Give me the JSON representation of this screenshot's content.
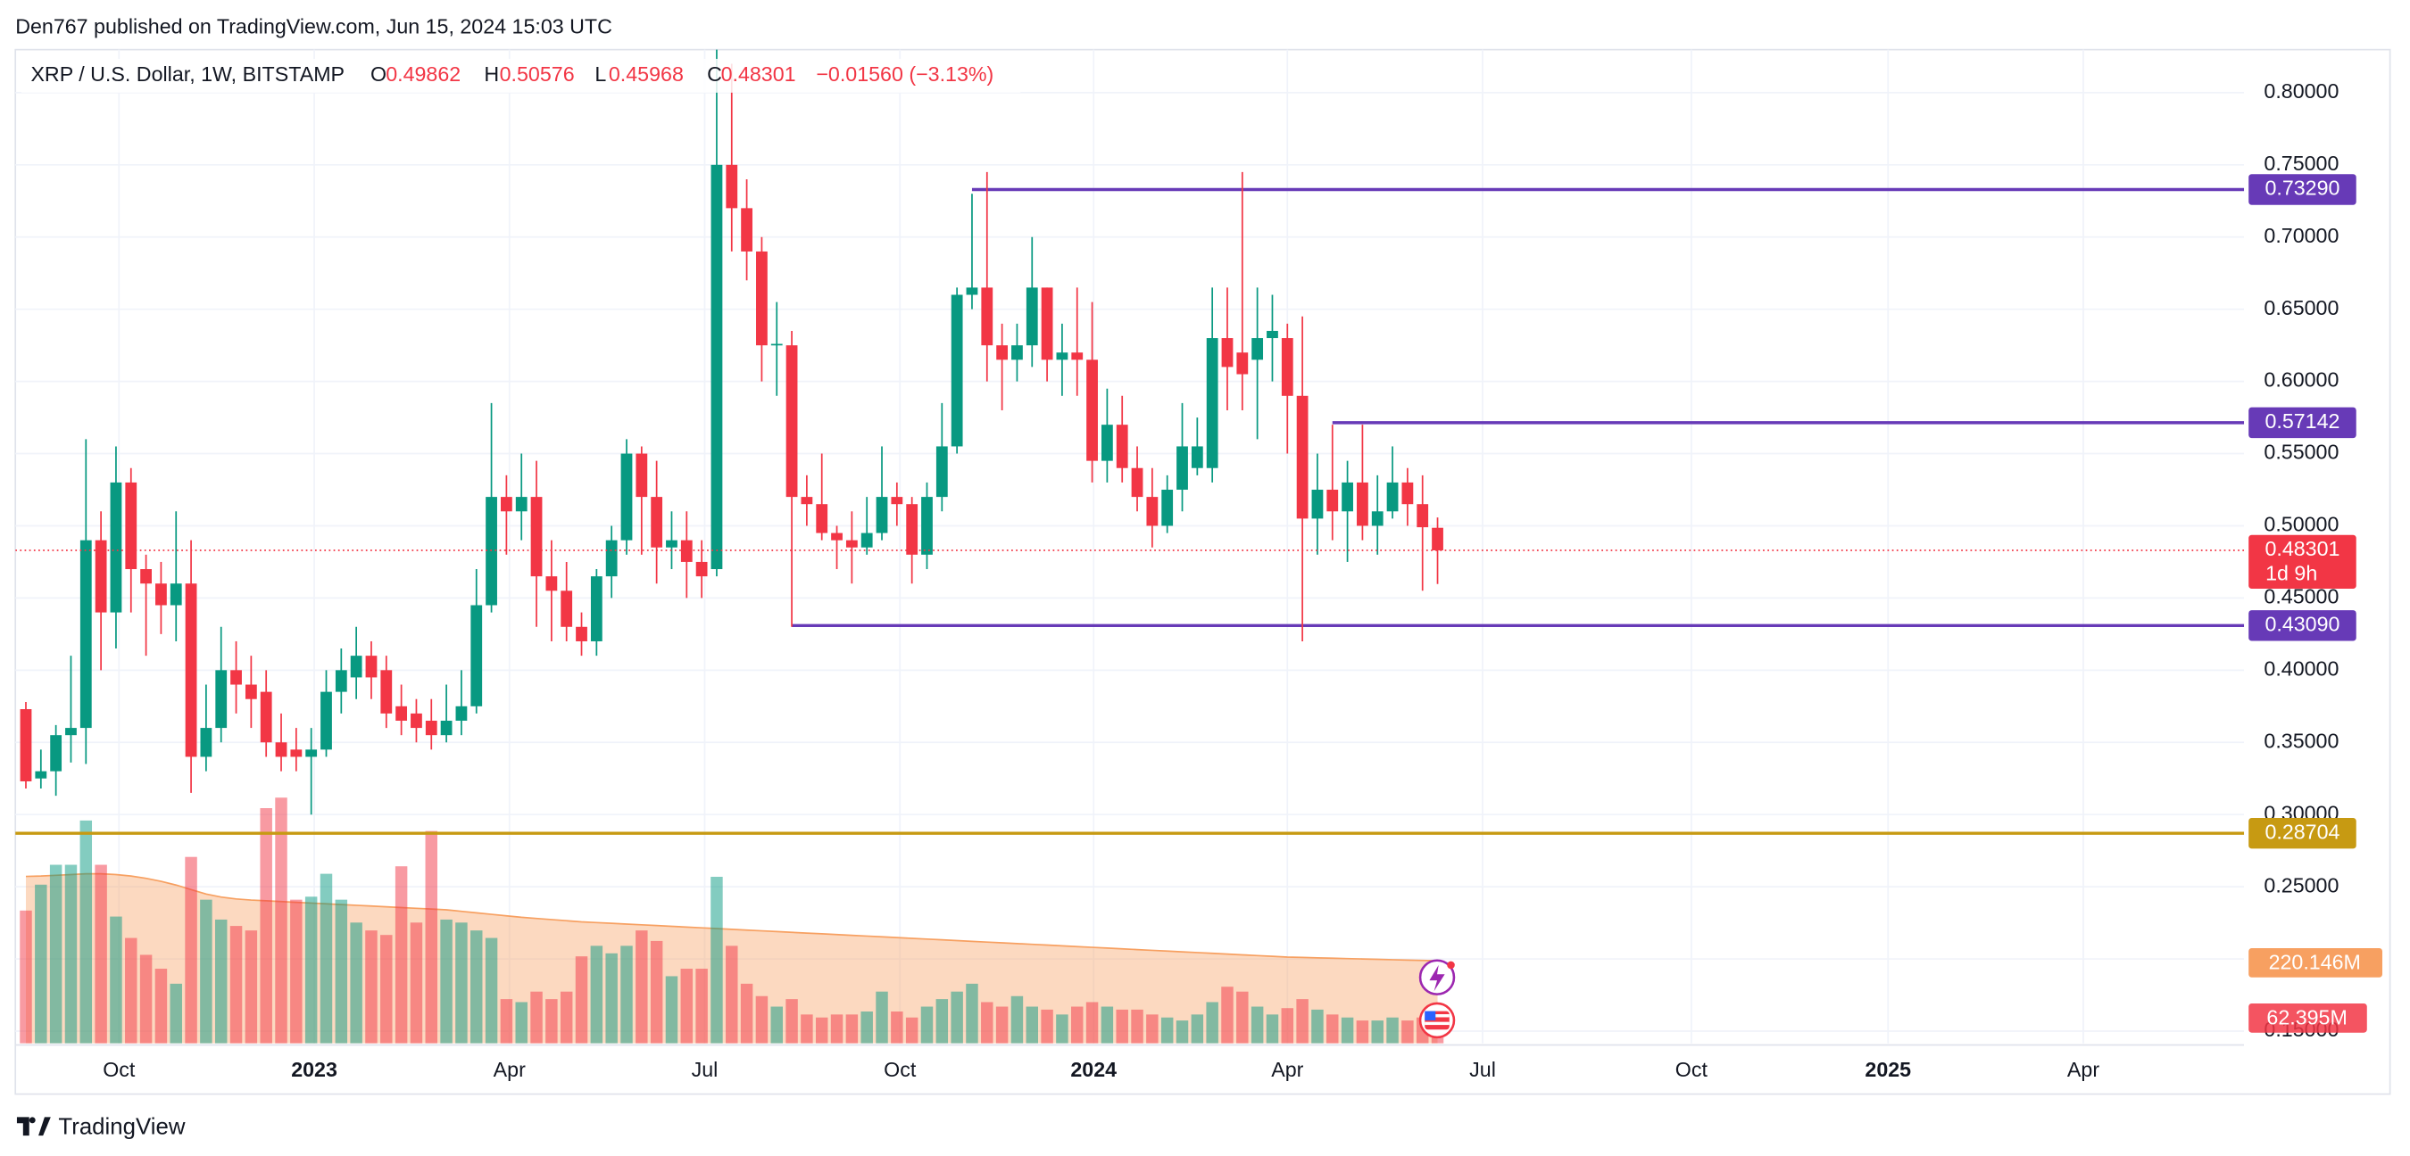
{
  "chart_data": {
    "type": "candlestick",
    "publisher": "Den767 published on TradingView.com, Jun 15, 2024 15:03 UTC",
    "brand": "TradingView",
    "legend": {
      "symbol": "XRP / U.S. Dollar, 1W, BITSTAMP",
      "open_key": "O",
      "high_key": "H",
      "low_key": "L",
      "close_key": "C",
      "change": "−0.01560 (−3.13%)"
    },
    "countdown": "1d 9h",
    "up_color": "#089981",
    "down_color": "#f23645",
    "grid": true,
    "xlim": [
      -0.7,
      147.7
    ],
    "xticks": [
      {
        "value": 6.2,
        "label": "Oct"
      },
      {
        "value": 19.2,
        "label": "2023"
      },
      {
        "value": 32.2,
        "label": "Apr"
      },
      {
        "value": 45.2,
        "label": "Jul"
      },
      {
        "value": 58.2,
        "label": "Oct"
      },
      {
        "value": 71.1,
        "label": "2024"
      },
      {
        "value": 84.0,
        "label": "Apr"
      },
      {
        "value": 97.0,
        "label": "Jul"
      },
      {
        "value": 110.9,
        "label": "Oct"
      },
      {
        "value": 124.0,
        "label": "2025"
      },
      {
        "value": 137.0,
        "label": "Apr"
      }
    ],
    "ylim": [
      0.1415,
      0.8298
    ],
    "yticks": [
      {
        "value": 0.8,
        "label": "0.80000"
      },
      {
        "value": 0.75,
        "label": "0.75000"
      },
      {
        "value": 0.7,
        "label": "0.70000"
      },
      {
        "value": 0.65,
        "label": "0.65000"
      },
      {
        "value": 0.6,
        "label": "0.60000"
      },
      {
        "value": 0.55,
        "label": "0.55000"
      },
      {
        "value": 0.5,
        "label": "0.50000"
      },
      {
        "value": 0.45,
        "label": "0.45000"
      },
      {
        "value": 0.4,
        "label": "0.40000"
      },
      {
        "value": 0.35,
        "label": "0.35000"
      },
      {
        "value": 0.3,
        "label": "0.30000"
      },
      {
        "value": 0.25,
        "label": "0.25000"
      },
      {
        "value": 0.2,
        "label": "0.20000"
      },
      {
        "value": 0.15,
        "label": "0.15000"
      }
    ],
    "open": [
      0.373,
      0.325,
      0.33,
      0.355,
      0.36,
      0.49,
      0.44,
      0.53,
      0.47,
      0.46,
      0.445,
      0.46,
      0.34,
      0.36,
      0.4,
      0.39,
      0.385,
      0.35,
      0.345,
      0.34,
      0.345,
      0.385,
      0.395,
      0.41,
      0.4,
      0.375,
      0.37,
      0.365,
      0.355,
      0.365,
      0.375,
      0.445,
      0.52,
      0.51,
      0.52,
      0.465,
      0.455,
      0.43,
      0.42,
      0.465,
      0.49,
      0.55,
      0.52,
      0.485,
      0.49,
      0.475,
      0.47,
      0.75,
      0.72,
      0.69,
      0.625,
      0.625,
      0.52,
      0.515,
      0.495,
      0.49,
      0.485,
      0.495,
      0.52,
      0.515,
      0.48,
      0.52,
      0.555,
      0.66,
      0.665,
      0.625,
      0.615,
      0.625,
      0.665,
      0.615,
      0.62,
      0.615,
      0.545,
      0.57,
      0.54,
      0.52,
      0.5,
      0.525,
      0.54,
      0.54,
      0.63,
      0.62,
      0.615,
      0.63,
      0.63,
      0.59,
      0.505,
      0.525,
      0.51,
      0.53,
      0.5,
      0.51,
      0.53,
      0.515,
      0.49862
    ],
    "high": [
      0.378,
      0.345,
      0.362,
      0.41,
      0.56,
      0.51,
      0.555,
      0.54,
      0.48,
      0.475,
      0.51,
      0.49,
      0.39,
      0.43,
      0.42,
      0.41,
      0.4,
      0.37,
      0.36,
      0.36,
      0.4,
      0.415,
      0.43,
      0.42,
      0.41,
      0.39,
      0.38,
      0.38,
      0.39,
      0.4,
      0.47,
      0.585,
      0.535,
      0.55,
      0.545,
      0.49,
      0.475,
      0.44,
      0.47,
      0.5,
      0.56,
      0.555,
      0.545,
      0.51,
      0.51,
      0.49,
      0.83,
      0.82,
      0.74,
      0.7,
      0.655,
      0.635,
      0.535,
      0.55,
      0.5,
      0.51,
      0.52,
      0.555,
      0.53,
      0.52,
      0.53,
      0.585,
      0.665,
      0.73,
      0.745,
      0.64,
      0.64,
      0.7,
      0.665,
      0.64,
      0.665,
      0.655,
      0.595,
      0.59,
      0.555,
      0.54,
      0.535,
      0.585,
      0.575,
      0.665,
      0.665,
      0.745,
      0.665,
      0.66,
      0.64,
      0.645,
      0.55,
      0.57,
      0.545,
      0.57,
      0.535,
      0.555,
      0.54,
      0.535,
      0.50576
    ],
    "low": [
      0.318,
      0.318,
      0.313,
      0.336,
      0.335,
      0.4,
      0.415,
      0.44,
      0.41,
      0.425,
      0.42,
      0.315,
      0.33,
      0.35,
      0.37,
      0.36,
      0.34,
      0.33,
      0.33,
      0.3,
      0.34,
      0.37,
      0.38,
      0.38,
      0.36,
      0.355,
      0.35,
      0.345,
      0.35,
      0.355,
      0.37,
      0.44,
      0.48,
      0.49,
      0.43,
      0.42,
      0.42,
      0.41,
      0.41,
      0.45,
      0.48,
      0.48,
      0.46,
      0.47,
      0.45,
      0.45,
      0.465,
      0.69,
      0.67,
      0.6,
      0.59,
      0.43,
      0.5,
      0.49,
      0.47,
      0.46,
      0.48,
      0.49,
      0.5,
      0.46,
      0.47,
      0.51,
      0.55,
      0.65,
      0.6,
      0.58,
      0.6,
      0.61,
      0.6,
      0.59,
      0.59,
      0.53,
      0.53,
      0.53,
      0.51,
      0.485,
      0.495,
      0.51,
      0.535,
      0.53,
      0.58,
      0.58,
      0.56,
      0.6,
      0.55,
      0.42,
      0.48,
      0.49,
      0.475,
      0.49,
      0.48,
      0.505,
      0.5,
      0.455,
      0.45968
    ],
    "close": [
      0.323,
      0.33,
      0.355,
      0.36,
      0.49,
      0.44,
      0.53,
      0.47,
      0.46,
      0.445,
      0.46,
      0.34,
      0.36,
      0.4,
      0.39,
      0.38,
      0.35,
      0.34,
      0.34,
      0.345,
      0.385,
      0.4,
      0.41,
      0.395,
      0.37,
      0.365,
      0.36,
      0.355,
      0.365,
      0.375,
      0.445,
      0.52,
      0.51,
      0.52,
      0.465,
      0.455,
      0.43,
      0.42,
      0.465,
      0.49,
      0.55,
      0.52,
      0.485,
      0.49,
      0.475,
      0.465,
      0.75,
      0.72,
      0.69,
      0.625,
      0.626,
      0.52,
      0.515,
      0.495,
      0.49,
      0.485,
      0.495,
      0.52,
      0.515,
      0.48,
      0.52,
      0.555,
      0.66,
      0.665,
      0.625,
      0.615,
      0.625,
      0.665,
      0.615,
      0.62,
      0.615,
      0.545,
      0.57,
      0.54,
      0.52,
      0.5,
      0.525,
      0.555,
      0.555,
      0.63,
      0.61,
      0.605,
      0.63,
      0.635,
      0.59,
      0.505,
      0.525,
      0.51,
      0.53,
      0.5,
      0.51,
      0.53,
      0.515,
      0.499,
      0.48301
    ],
    "levels": [
      {
        "value": 0.7329,
        "label": "0.73290",
        "color": "#673ab7",
        "x_start": 63
      },
      {
        "value": 0.57142,
        "label": "0.57142",
        "color": "#673ab7",
        "x_start": 87
      },
      {
        "value": 0.4309,
        "label": "0.43090",
        "color": "#673ab7",
        "x_start": 51
      },
      {
        "value": 0.28704,
        "label": "0.28704",
        "color": "#c79a12",
        "x_start": -0.7
      }
    ],
    "volume": {
      "ylim": [
        0,
        700
      ],
      "color": "#f23645",
      "last_label": "62.395M",
      "values": [
        354,
        423,
        476,
        476,
        594,
        476,
        338,
        281,
        236,
        199,
        159,
        497,
        383,
        330,
        313,
        301,
        627,
        655,
        383,
        391,
        452,
        383,
        322,
        301,
        289,
        472,
        322,
        566,
        330,
        322,
        301,
        281,
        118,
        110,
        138,
        118,
        138,
        232,
        260,
        240,
        260,
        301,
        273,
        179,
        199,
        199,
        444,
        260,
        159,
        126,
        98,
        118,
        77,
        69,
        77,
        77,
        85,
        138,
        85,
        69,
        98,
        118,
        138,
        159,
        110,
        98,
        126,
        98,
        90,
        77,
        98,
        110,
        98,
        90,
        90,
        77,
        69,
        61,
        77,
        110,
        151,
        138,
        98,
        77,
        94,
        118,
        90,
        77,
        69,
        61,
        61,
        69,
        61,
        69,
        62.395
      ],
      "ma": {
        "color": "#f7a061",
        "last_label": "220.146M",
        "values": [
          445,
          446,
          448,
          450,
          452,
          452,
          450,
          446,
          440,
          432,
          422,
          410,
          398,
          390,
          385,
          382,
          380,
          378,
          376,
          374,
          372,
          370,
          368,
          366,
          364,
          362,
          360,
          358,
          356,
          352,
          348,
          344,
          340,
          336,
          333,
          330,
          327,
          324,
          322,
          320,
          318,
          316,
          314,
          312,
          310,
          308,
          306,
          304,
          302,
          300,
          298,
          296,
          294,
          292,
          290,
          288,
          286,
          284,
          282,
          280,
          278,
          276,
          274,
          272,
          270,
          268,
          266,
          264,
          262,
          260,
          258,
          256,
          254,
          252,
          250,
          248,
          246,
          244,
          242,
          240,
          238,
          236,
          234,
          232,
          230,
          229,
          228,
          227,
          226,
          225,
          224,
          223,
          222,
          221,
          220.146
        ]
      }
    }
  }
}
